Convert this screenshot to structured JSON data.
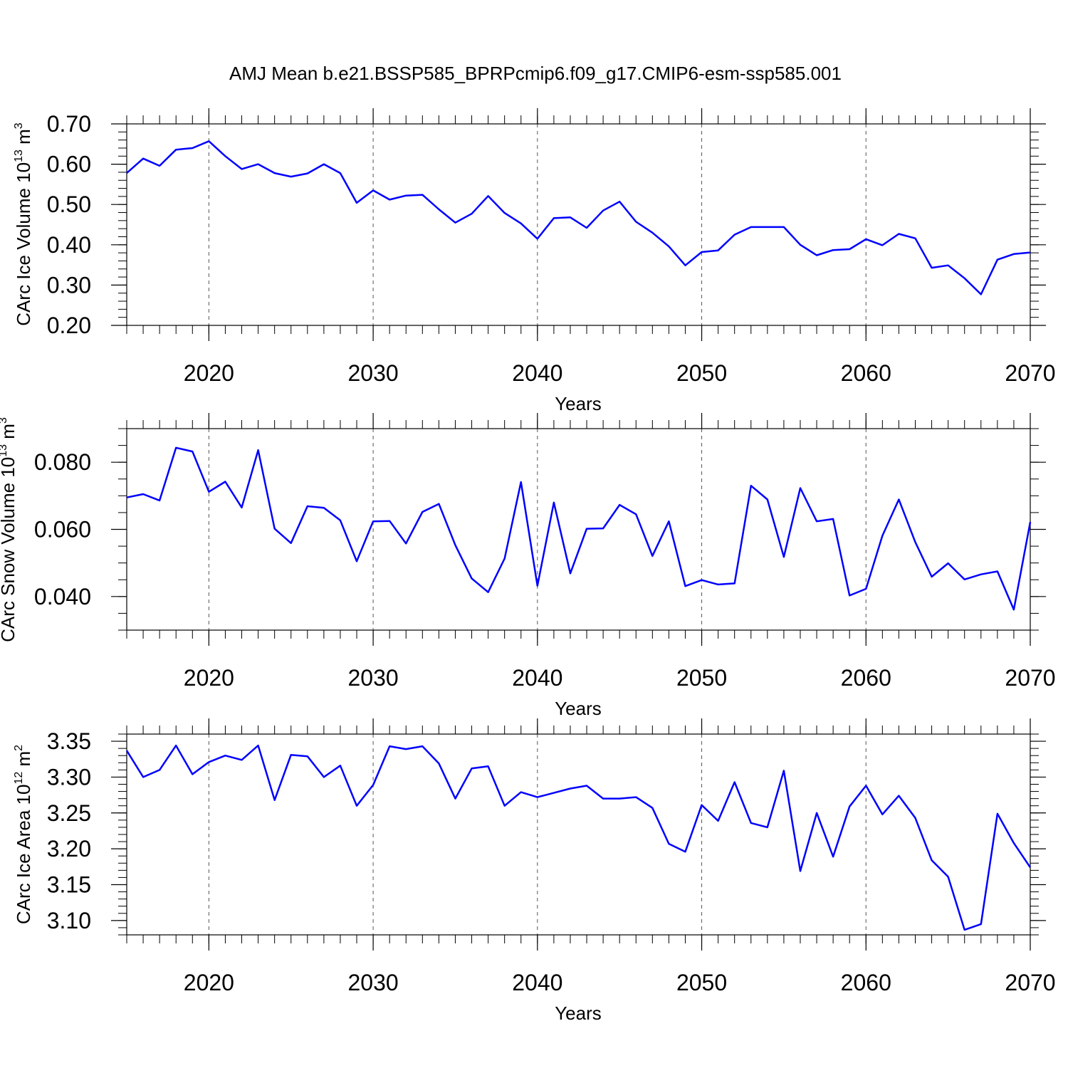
{
  "title": "AMJ Mean b.e21.BSSP585_BPRPcmip6.f09_g17.CMIP6-esm-ssp585.001",
  "colors": {
    "series": "#0000ff",
    "axis": "#000000",
    "grid": "#555555"
  },
  "chart_data": [
    {
      "type": "line",
      "xlabel": "Years",
      "ylabel": "CArc Ice Volume 10",
      "ylabel_exp": "13",
      "ylabel_unit": "m",
      "ylabel_unit_exp": "3",
      "xlim": [
        2015,
        2070
      ],
      "ylim": [
        0.2,
        0.7
      ],
      "x_ticks": [
        "2020",
        "2030",
        "2040",
        "2050",
        "2060",
        "2070"
      ],
      "y_ticks": [
        "0.70",
        "0.60",
        "0.50",
        "0.40",
        "0.30",
        "0.20"
      ],
      "x_grid": "dashed at major ticks",
      "x": [
        2015,
        2016,
        2017,
        2018,
        2019,
        2020,
        2021,
        2022,
        2023,
        2024,
        2025,
        2026,
        2027,
        2028,
        2029,
        2030,
        2031,
        2032,
        2033,
        2034,
        2035,
        2036,
        2037,
        2038,
        2039,
        2040,
        2041,
        2042,
        2043,
        2044,
        2045,
        2046,
        2047,
        2048,
        2049,
        2050,
        2051,
        2052,
        2053,
        2054,
        2055,
        2056,
        2057,
        2058,
        2059,
        2060,
        2061,
        2062,
        2063,
        2064,
        2065,
        2066,
        2067,
        2068,
        2069,
        2070
      ],
      "y": [
        0.578,
        0.614,
        0.596,
        0.636,
        0.64,
        0.657,
        0.62,
        0.588,
        0.6,
        0.578,
        0.569,
        0.577,
        0.6,
        0.578,
        0.504,
        0.535,
        0.512,
        0.522,
        0.524,
        0.488,
        0.455,
        0.477,
        0.521,
        0.479,
        0.453,
        0.415,
        0.466,
        0.468,
        0.442,
        0.485,
        0.507,
        0.457,
        0.43,
        0.396,
        0.349,
        0.382,
        0.386,
        0.425,
        0.444,
        0.444,
        0.444,
        0.4,
        0.374,
        0.387,
        0.389,
        0.414,
        0.399,
        0.427,
        0.416,
        0.343,
        0.349,
        0.317,
        0.277,
        0.363,
        0.377,
        0.381
      ]
    },
    {
      "type": "line",
      "xlabel": "Years",
      "ylabel": "CArc Snow Volume 10",
      "ylabel_exp": "13",
      "ylabel_unit": "m",
      "ylabel_unit_exp": "3",
      "xlim": [
        2015,
        2070
      ],
      "ylim": [
        0.03,
        0.09
      ],
      "x_ticks": [
        "2020",
        "2030",
        "2040",
        "2050",
        "2060",
        "2070"
      ],
      "y_ticks": [
        "0.080",
        "0.060",
        "0.040"
      ],
      "x_grid": "dashed at major ticks",
      "x": [
        2015,
        2016,
        2017,
        2018,
        2019,
        2020,
        2021,
        2022,
        2023,
        2024,
        2025,
        2026,
        2027,
        2028,
        2029,
        2030,
        2031,
        2032,
        2033,
        2034,
        2035,
        2036,
        2037,
        2038,
        2039,
        2040,
        2041,
        2042,
        2043,
        2044,
        2045,
        2046,
        2047,
        2048,
        2049,
        2050,
        2051,
        2052,
        2053,
        2054,
        2055,
        2056,
        2057,
        2058,
        2059,
        2060,
        2061,
        2062,
        2063,
        2064,
        2065,
        2066,
        2067,
        2068,
        2069,
        2070
      ],
      "y": [
        0.0695,
        0.0705,
        0.0686,
        0.0843,
        0.0832,
        0.0712,
        0.0742,
        0.0665,
        0.0836,
        0.0602,
        0.0559,
        0.0669,
        0.0664,
        0.0627,
        0.0505,
        0.0624,
        0.0625,
        0.0558,
        0.0652,
        0.0676,
        0.0553,
        0.0454,
        0.0413,
        0.0513,
        0.0741,
        0.0432,
        0.068,
        0.0469,
        0.0602,
        0.0603,
        0.0673,
        0.0645,
        0.0521,
        0.0624,
        0.0431,
        0.0449,
        0.0436,
        0.0439,
        0.073,
        0.0689,
        0.0518,
        0.0723,
        0.0624,
        0.0631,
        0.0403,
        0.0423,
        0.0581,
        0.0689,
        0.0562,
        0.0459,
        0.0499,
        0.0451,
        0.0466,
        0.0475,
        0.0361,
        0.0622
      ]
    },
    {
      "type": "line",
      "xlabel": "Years",
      "ylabel": "CArc Ice Area 10",
      "ylabel_exp": "12",
      "ylabel_unit": "m",
      "ylabel_unit_exp": "2",
      "xlim": [
        2015,
        2070
      ],
      "ylim": [
        3.08,
        3.36
      ],
      "x_ticks": [
        "2020",
        "2030",
        "2040",
        "2050",
        "2060",
        "2070"
      ],
      "y_ticks": [
        "3.35",
        "3.30",
        "3.25",
        "3.20",
        "3.15",
        "3.10"
      ],
      "x_grid": "dashed at major ticks",
      "x": [
        2015,
        2016,
        2017,
        2018,
        2019,
        2020,
        2021,
        2022,
        2023,
        2024,
        2025,
        2026,
        2027,
        2028,
        2029,
        2030,
        2031,
        2032,
        2033,
        2034,
        2035,
        2036,
        2037,
        2038,
        2039,
        2040,
        2041,
        2042,
        2043,
        2044,
        2045,
        2046,
        2047,
        2048,
        2049,
        2050,
        2051,
        2052,
        2053,
        2054,
        2055,
        2056,
        2057,
        2058,
        2059,
        2060,
        2061,
        2062,
        2063,
        2064,
        2065,
        2066,
        2067,
        2068,
        2069,
        2070
      ],
      "y": [
        3.337,
        3.3,
        3.31,
        3.344,
        3.304,
        3.321,
        3.33,
        3.324,
        3.344,
        3.268,
        3.331,
        3.329,
        3.3,
        3.316,
        3.26,
        3.289,
        3.343,
        3.339,
        3.343,
        3.319,
        3.27,
        3.312,
        3.315,
        3.26,
        3.279,
        3.272,
        3.278,
        3.284,
        3.288,
        3.27,
        3.27,
        3.272,
        3.257,
        3.207,
        3.196,
        3.261,
        3.239,
        3.293,
        3.236,
        3.23,
        3.309,
        3.169,
        3.25,
        3.189,
        3.259,
        3.288,
        3.248,
        3.274,
        3.243,
        3.184,
        3.161,
        3.087,
        3.095,
        3.249,
        3.208,
        3.174
      ]
    }
  ]
}
